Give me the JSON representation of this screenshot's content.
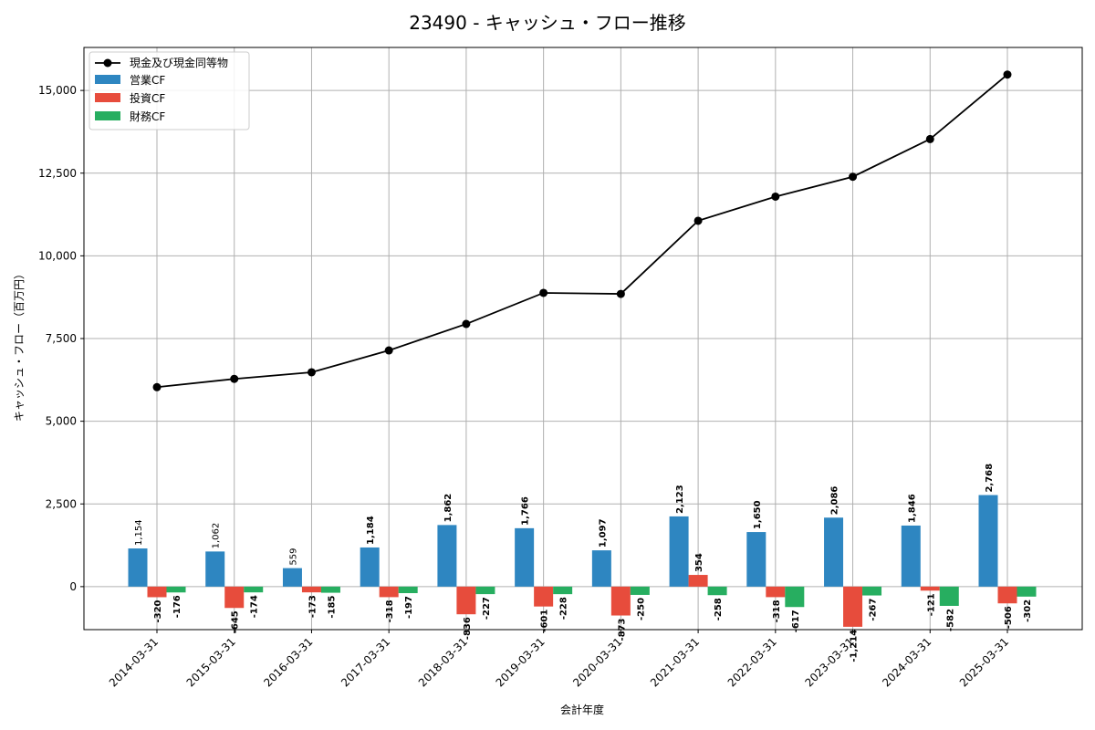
{
  "chart_data": {
    "type": "bar",
    "title": "23490 - キャッシュ・フロー推移",
    "xlabel": "会計年度",
    "ylabel": "キャッシュ・フロー（百万円）",
    "ylim": [
      -1300,
      16300
    ],
    "yticks": [
      0,
      2500,
      5000,
      7500,
      10000,
      12500,
      15000
    ],
    "ytick_labels": [
      "0",
      "2,500",
      "5,000",
      "7,500",
      "10,000",
      "12,500",
      "15,000"
    ],
    "grid": true,
    "legend_position": "top-left",
    "categories": [
      "2014-03-31",
      "2015-03-31",
      "2016-03-31",
      "2017-03-31",
      "2018-03-31",
      "2019-03-31",
      "2020-03-31",
      "2021-03-31",
      "2022-03-31",
      "2023-03-31",
      "2024-03-31",
      "2025-03-31"
    ],
    "line_series": {
      "name": "現金及び現金同等物",
      "color": "#000000",
      "values": [
        6030,
        6280,
        6480,
        7140,
        7940,
        8880,
        8850,
        11060,
        11790,
        12390,
        13530,
        15480
      ]
    },
    "series": [
      {
        "name": "営業CF",
        "color": "#2e86c1",
        "values": [
          1154,
          1062,
          559,
          1184,
          1862,
          1766,
          1097,
          2123,
          1650,
          2086,
          1846,
          2768
        ],
        "labels": [
          "1,154",
          "1,062",
          "559",
          "1,184",
          "1,862",
          "1,766",
          "1,097",
          "2,123",
          "1,650",
          "2,086",
          "1,846",
          "2,768"
        ]
      },
      {
        "name": "投資CF",
        "color": "#e74c3c",
        "values": [
          -320,
          -645,
          -173,
          -318,
          -836,
          -601,
          -873,
          354,
          -318,
          -1214,
          -121,
          -506
        ],
        "labels": [
          "-320",
          "-645",
          "-173",
          "-318",
          "-836",
          "-601",
          "-873",
          "354",
          "-318",
          "-1,214",
          "-121",
          "-506"
        ]
      },
      {
        "name": "財務CF",
        "color": "#27ae60",
        "values": [
          -176,
          -174,
          -185,
          -197,
          -227,
          -228,
          -250,
          -258,
          -617,
          -267,
          -582,
          -302
        ],
        "labels": [
          "-176",
          "-174",
          "-185",
          "-197",
          "-227",
          "-228",
          "-250",
          "-258",
          "-617",
          "-267",
          "-582",
          "-302"
        ]
      }
    ]
  }
}
